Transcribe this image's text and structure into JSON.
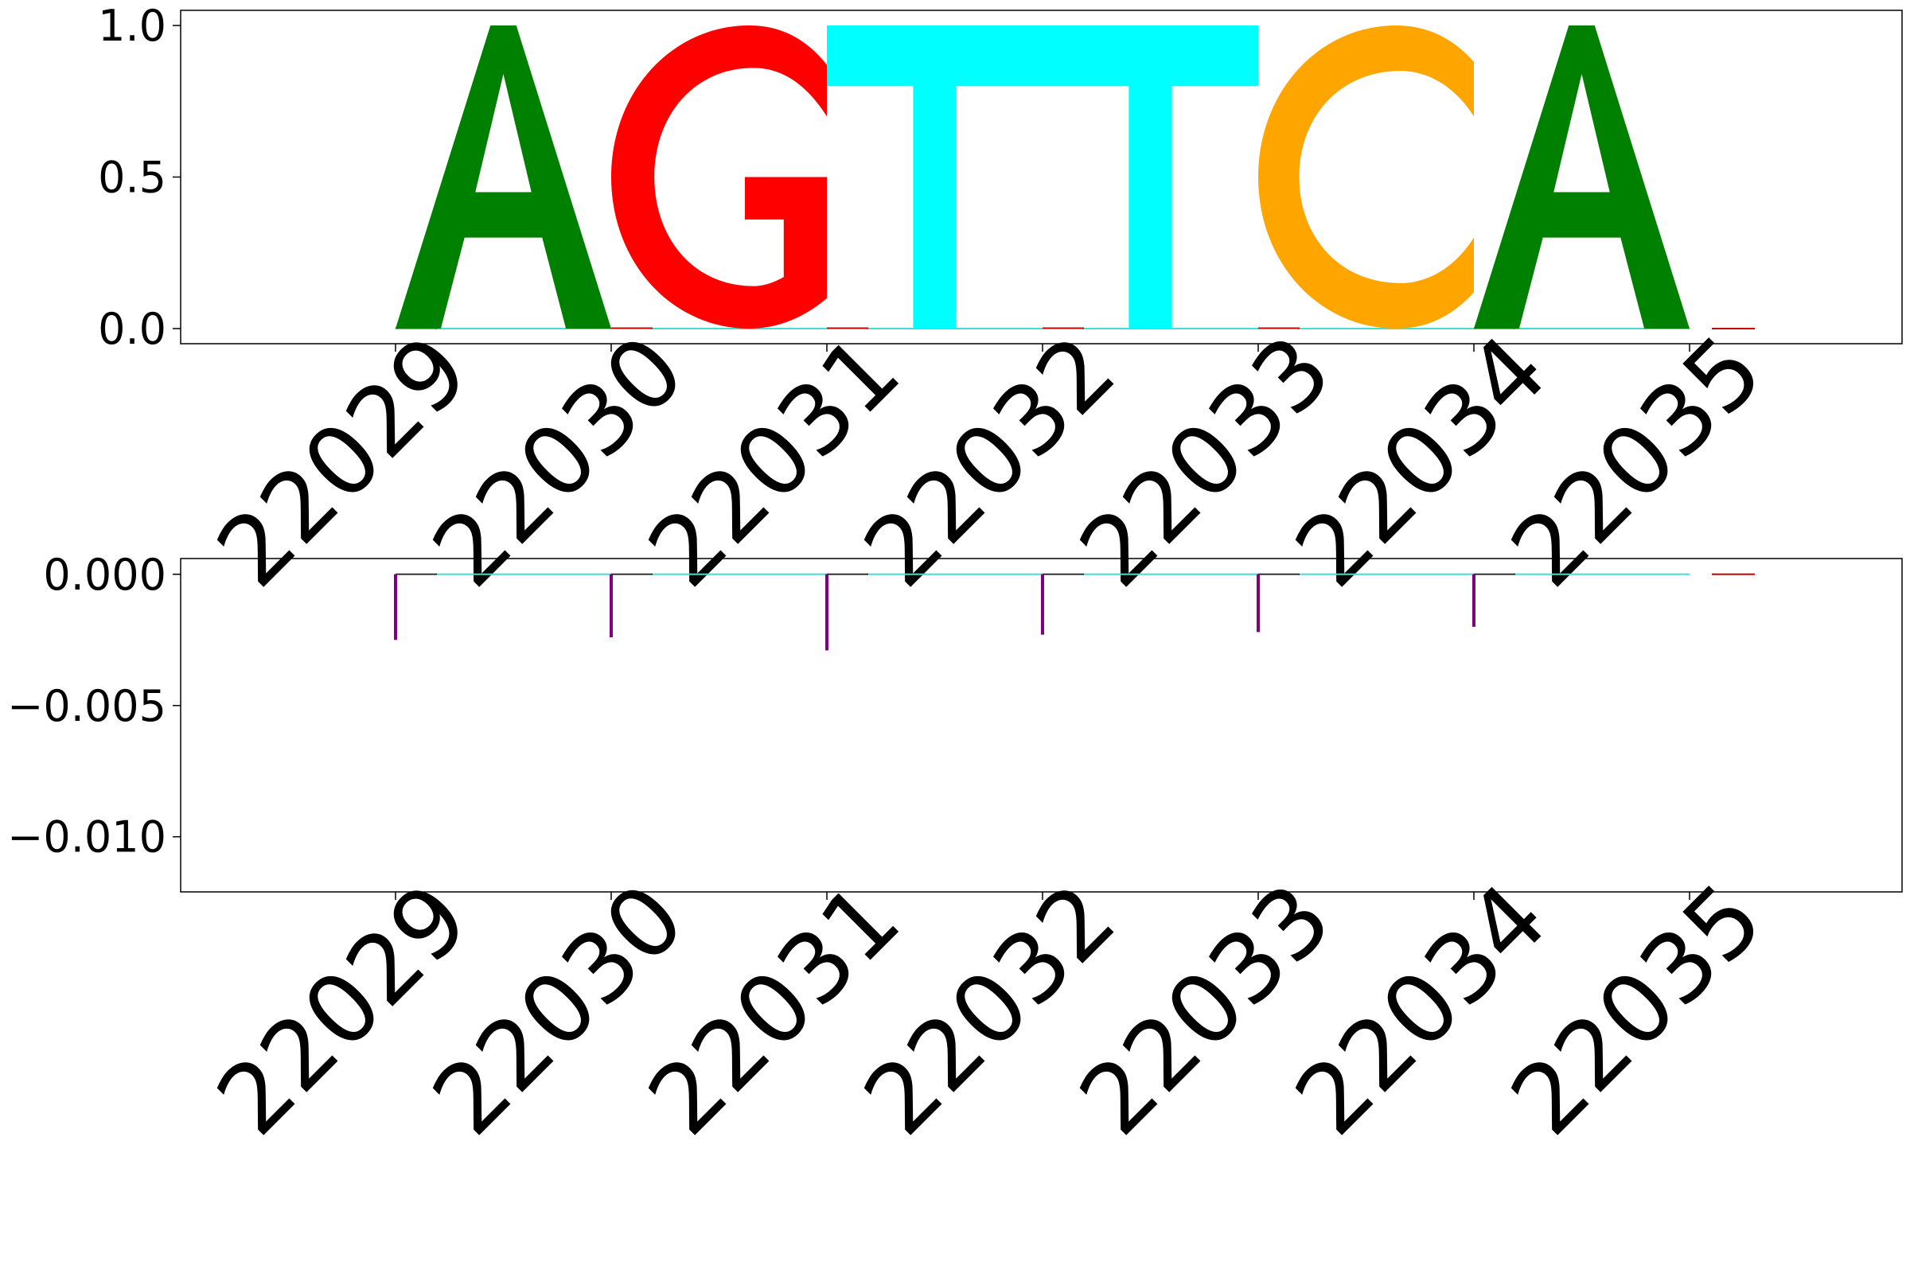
{
  "chart_data": [
    {
      "type": "sequence-logo",
      "positions": [
        22029,
        22030,
        22031,
        22032,
        22033,
        22034,
        22035
      ],
      "tick_labels": [
        "22029",
        "22030",
        "22031",
        "22032",
        "22033",
        "22034",
        "22035"
      ],
      "letters": [
        {
          "pos": 22029,
          "base": "A",
          "height": 1.0
        },
        {
          "pos": 22030,
          "base": "G",
          "height": 1.0
        },
        {
          "pos": 22031,
          "base": "T",
          "height": 1.0
        },
        {
          "pos": 22032,
          "base": "T",
          "height": 1.0
        },
        {
          "pos": 22033,
          "base": "C",
          "height": 1.0
        },
        {
          "pos": 22034,
          "base": "A",
          "height": 1.0
        }
      ],
      "ylim": [
        -0.05,
        1.05
      ],
      "yticks": [
        0.0,
        0.5,
        1.0
      ],
      "ytick_labels": [
        "0.0",
        "0.5",
        "1.0"
      ]
    },
    {
      "type": "bar",
      "positions": [
        22029,
        22030,
        22031,
        22032,
        22033,
        22034,
        22035
      ],
      "tick_labels": [
        "22029",
        "22030",
        "22031",
        "22032",
        "22033",
        "22034",
        "22035"
      ],
      "values": [
        -0.0025,
        -0.0024,
        -0.0029,
        -0.0023,
        -0.0022,
        -0.002,
        0.0
      ],
      "ylim": [
        -0.0121,
        0.0006
      ],
      "yticks": [
        0.0,
        -0.005,
        -0.01
      ],
      "ytick_labels": [
        "0.000",
        "−0.005",
        "−0.010"
      ]
    }
  ],
  "colors": {
    "A": "#008000",
    "C": "#ffa500",
    "G": "#ff0000",
    "T": "#00ffff",
    "bar": "#800080",
    "baseline_cyan": "#40e0d0",
    "baseline_red": "#cc0000"
  }
}
